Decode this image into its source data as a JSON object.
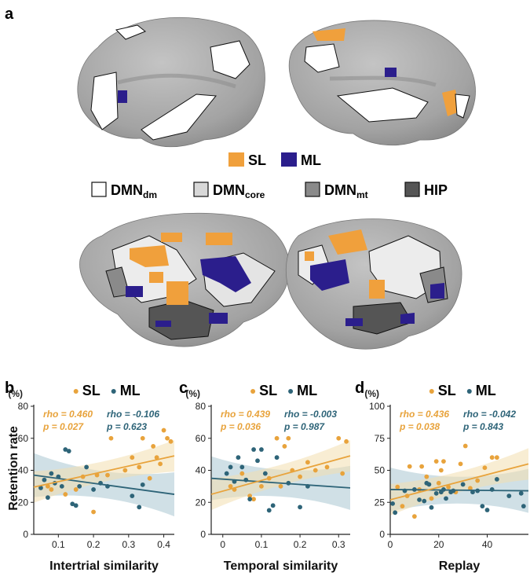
{
  "panel_a": {
    "letter": "a",
    "legend_top": [
      {
        "label": "SL",
        "color": "#F0A03C"
      },
      {
        "label": "ML",
        "color": "#2B1E8C"
      }
    ],
    "legend_networks": [
      {
        "main": "DMN",
        "sub": "dm",
        "color": "#ffffff"
      },
      {
        "main": "DMN",
        "sub": "core",
        "color": "#d8d8d8"
      },
      {
        "main": "DMN",
        "sub": "mt",
        "color": "#8a8a8a"
      },
      {
        "main": "HIP",
        "sub": "",
        "color": "#555555"
      }
    ]
  },
  "colors": {
    "sl": "#E8A33C",
    "ml": "#2E6478",
    "sl_band": "#F3DFAE",
    "ml_band": "#A9C6D2",
    "brain": "#a7a7a7"
  },
  "legend_labels": {
    "sl": "SL",
    "ml": "ML"
  },
  "chart_data": [
    {
      "panel": "b",
      "type": "scatter",
      "title": "",
      "xlabel": "Intertrial similarity",
      "ylabel": "Retention rate",
      "y_unit": "(%)",
      "xlim": [
        0.03,
        0.43
      ],
      "ylim": [
        0,
        80
      ],
      "xticks": [
        0.1,
        0.2,
        0.3,
        0.4
      ],
      "xtick_labels": [
        "0.1",
        "0.2",
        "0.3",
        "0.4"
      ],
      "yticks": [
        0,
        20,
        40,
        60,
        80
      ],
      "ytick_labels": [
        "0",
        "20",
        "40",
        "60",
        "80"
      ],
      "stats": {
        "sl_rho": "rho = 0.460",
        "sl_p": "p = 0.027",
        "ml_rho": "rho = -0.106",
        "ml_p": "p = 0.623"
      },
      "fit": {
        "sl": [
          [
            0.03,
            29.5
          ],
          [
            0.43,
            49
          ]
        ],
        "ml": [
          [
            0.03,
            37
          ],
          [
            0.43,
            25
          ]
        ]
      },
      "series": [
        {
          "name": "SL",
          "points": [
            [
              0.07,
              30
            ],
            [
              0.08,
              28
            ],
            [
              0.12,
              25
            ],
            [
              0.15,
              28
            ],
            [
              0.17,
              36
            ],
            [
              0.2,
              14
            ],
            [
              0.21,
              37
            ],
            [
              0.24,
              37
            ],
            [
              0.25,
              60
            ],
            [
              0.29,
              40
            ],
            [
              0.31,
              48
            ],
            [
              0.33,
              42
            ],
            [
              0.34,
              60
            ],
            [
              0.36,
              35
            ],
            [
              0.37,
              55
            ],
            [
              0.38,
              48
            ],
            [
              0.39,
              44
            ],
            [
              0.4,
              65
            ],
            [
              0.41,
              60
            ],
            [
              0.42,
              58
            ]
          ]
        },
        {
          "name": "ML",
          "points": [
            [
              0.05,
              29
            ],
            [
              0.06,
              34
            ],
            [
              0.07,
              23
            ],
            [
              0.08,
              38
            ],
            [
              0.09,
              32
            ],
            [
              0.1,
              36
            ],
            [
              0.11,
              30
            ],
            [
              0.12,
              53
            ],
            [
              0.13,
              52
            ],
            [
              0.14,
              19
            ],
            [
              0.15,
              18
            ],
            [
              0.16,
              30
            ],
            [
              0.18,
              42
            ],
            [
              0.2,
              28
            ],
            [
              0.22,
              32
            ],
            [
              0.24,
              30
            ],
            [
              0.31,
              24
            ],
            [
              0.33,
              17
            ],
            [
              0.34,
              31
            ]
          ]
        }
      ]
    },
    {
      "panel": "c",
      "type": "scatter",
      "title": "",
      "xlabel": "Temporal similarity",
      "ylabel": "",
      "y_unit": "(%)",
      "xlim": [
        -0.03,
        0.33
      ],
      "ylim": [
        0,
        80
      ],
      "xticks": [
        0,
        0.1,
        0.2,
        0.3
      ],
      "xtick_labels": [
        "0",
        "0.1",
        "0.2",
        "0.3"
      ],
      "yticks": [
        0,
        20,
        40,
        60,
        80
      ],
      "ytick_labels": [
        "0",
        "20",
        "40",
        "60",
        "80"
      ],
      "stats": {
        "sl_rho": "rho = 0.439",
        "sl_p": "p = 0.036",
        "ml_rho": "rho = -0.003",
        "ml_p": "p = 0.987"
      },
      "fit": {
        "sl": [
          [
            -0.03,
            25
          ],
          [
            0.33,
            49
          ]
        ],
        "ml": [
          [
            -0.03,
            35
          ],
          [
            0.33,
            29
          ]
        ]
      },
      "series": [
        {
          "name": "SL",
          "points": [
            [
              0.02,
              30
            ],
            [
              0.03,
              28
            ],
            [
              0.05,
              38
            ],
            [
              0.07,
              24
            ],
            [
              0.08,
              22
            ],
            [
              0.1,
              30
            ],
            [
              0.12,
              35
            ],
            [
              0.14,
              60
            ],
            [
              0.15,
              30
            ],
            [
              0.16,
              55
            ],
            [
              0.17,
              60
            ],
            [
              0.18,
              40
            ],
            [
              0.2,
              36
            ],
            [
              0.22,
              45
            ],
            [
              0.24,
              40
            ],
            [
              0.27,
              42
            ],
            [
              0.3,
              60
            ],
            [
              0.31,
              38
            ],
            [
              0.32,
              58
            ]
          ]
        },
        {
          "name": "ML",
          "points": [
            [
              0.01,
              38
            ],
            [
              0.02,
              42
            ],
            [
              0.03,
              33
            ],
            [
              0.04,
              48
            ],
            [
              0.05,
              42
            ],
            [
              0.06,
              34
            ],
            [
              0.07,
              22
            ],
            [
              0.08,
              53
            ],
            [
              0.09,
              46
            ],
            [
              0.1,
              53
            ],
            [
              0.11,
              38
            ],
            [
              0.12,
              15
            ],
            [
              0.13,
              18
            ],
            [
              0.14,
              48
            ],
            [
              0.17,
              32
            ],
            [
              0.2,
              17
            ],
            [
              0.22,
              30
            ]
          ]
        }
      ]
    },
    {
      "panel": "d",
      "type": "scatter",
      "title": "",
      "xlabel": "Replay",
      "ylabel": "",
      "y_unit": "(%)",
      "xlim": [
        0,
        57
      ],
      "ylim": [
        0,
        100
      ],
      "xticks": [
        0,
        20,
        40
      ],
      "xtick_labels": [
        "0",
        "20",
        "40"
      ],
      "yticks": [
        0,
        25,
        50,
        75,
        100
      ],
      "ytick_labels": [
        "0",
        "25",
        "50",
        "75",
        "100"
      ],
      "stats": {
        "sl_rho": "rho = 0.436",
        "sl_p": "p = 0.038",
        "ml_rho": "rho = -0.042",
        "ml_p": "p = 0.843"
      },
      "fit": {
        "sl": [
          [
            0,
            27
          ],
          [
            57,
            55
          ]
        ],
        "ml": [
          [
            0,
            35
          ],
          [
            57,
            34
          ]
        ]
      },
      "series": [
        {
          "name": "SL",
          "points": [
            [
              3,
              37
            ],
            [
              5,
              22
            ],
            [
              7,
              30
            ],
            [
              8,
              53
            ],
            [
              10,
              14
            ],
            [
              12,
              35
            ],
            [
              13,
              53
            ],
            [
              15,
              45
            ],
            [
              17,
              28
            ],
            [
              19,
              57
            ],
            [
              20,
              40
            ],
            [
              21,
              50
            ],
            [
              22,
              57
            ],
            [
              24,
              37
            ],
            [
              27,
              33
            ],
            [
              29,
              55
            ],
            [
              31,
              69
            ],
            [
              33,
              36
            ],
            [
              36,
              42
            ],
            [
              39,
              52
            ],
            [
              42,
              60
            ],
            [
              44,
              60
            ]
          ]
        },
        {
          "name": "ML",
          "points": [
            [
              1,
              24
            ],
            [
              2,
              17
            ],
            [
              6,
              34
            ],
            [
              10,
              35
            ],
            [
              12,
              27
            ],
            [
              14,
              26
            ],
            [
              15,
              40
            ],
            [
              16,
              39
            ],
            [
              17,
              21
            ],
            [
              19,
              32
            ],
            [
              21,
              33
            ],
            [
              22,
              35
            ],
            [
              23,
              28
            ],
            [
              25,
              33
            ],
            [
              26,
              34
            ],
            [
              30,
              39
            ],
            [
              34,
              33
            ],
            [
              36,
              34
            ],
            [
              38,
              22
            ],
            [
              40,
              19
            ],
            [
              42,
              35
            ],
            [
              44,
              43
            ],
            [
              49,
              30
            ],
            [
              54,
              32
            ],
            [
              55,
              22
            ]
          ]
        }
      ]
    }
  ]
}
